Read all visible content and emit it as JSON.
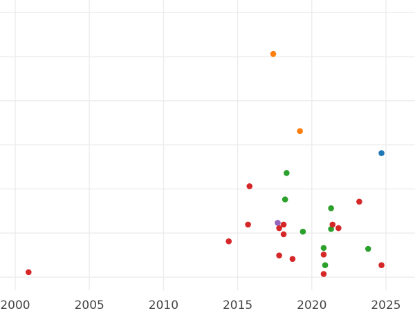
{
  "chart_data": {
    "type": "scatter",
    "title": "",
    "xlabel": "",
    "ylabel": "",
    "grid": true,
    "xlim": [
      2000,
      2026.8
    ],
    "ylim": [
      -0.1,
      6.5
    ],
    "x_ticks": [
      2000,
      2005,
      2010,
      2015,
      2020,
      2025
    ],
    "x_tick_labels": [
      "2000",
      "2005",
      "2010",
      "2015",
      "2020",
      "2025"
    ],
    "y_grid": [
      0,
      1,
      2,
      3,
      4,
      5,
      6
    ],
    "show_y_tick_labels": false,
    "series": [
      {
        "color": "#1f77b4",
        "points": [
          {
            "x": 2024.7,
            "y": 3.0
          }
        ]
      },
      {
        "color": "#ff7f0e",
        "points": [
          {
            "x": 2017.4,
            "y": 5.25
          },
          {
            "x": 2019.2,
            "y": 3.5
          }
        ]
      },
      {
        "color": "#2ca02c",
        "points": [
          {
            "x": 2018.3,
            "y": 2.55
          },
          {
            "x": 2018.2,
            "y": 1.95
          },
          {
            "x": 2021.3,
            "y": 1.75
          },
          {
            "x": 2021.3,
            "y": 1.28
          },
          {
            "x": 2019.4,
            "y": 1.22
          },
          {
            "x": 2020.8,
            "y": 0.85
          },
          {
            "x": 2023.8,
            "y": 0.83
          },
          {
            "x": 2020.9,
            "y": 0.46
          }
        ]
      },
      {
        "color": "#d62728",
        "points": [
          {
            "x": 2000.9,
            "y": 0.3
          },
          {
            "x": 2014.4,
            "y": 1.0
          },
          {
            "x": 2015.7,
            "y": 1.38
          },
          {
            "x": 2015.8,
            "y": 2.25
          },
          {
            "x": 2017.8,
            "y": 0.68
          },
          {
            "x": 2017.8,
            "y": 1.3
          },
          {
            "x": 2018.1,
            "y": 1.38
          },
          {
            "x": 2018.1,
            "y": 1.16
          },
          {
            "x": 2018.7,
            "y": 0.6
          },
          {
            "x": 2020.8,
            "y": 0.7
          },
          {
            "x": 2020.8,
            "y": 0.26
          },
          {
            "x": 2021.4,
            "y": 1.38
          },
          {
            "x": 2021.8,
            "y": 1.3
          },
          {
            "x": 2023.2,
            "y": 1.9
          },
          {
            "x": 2024.7,
            "y": 0.46
          }
        ]
      },
      {
        "color": "#9467bd",
        "points": [
          {
            "x": 2017.7,
            "y": 1.42
          }
        ]
      }
    ]
  }
}
